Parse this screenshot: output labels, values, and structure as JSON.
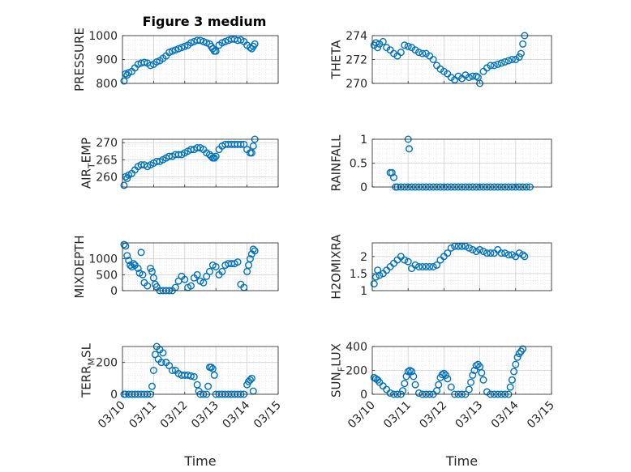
{
  "figure": {
    "title": "Figure 3 medium",
    "marker_color": "#0072BD"
  },
  "chart_data": [
    {
      "type": "scatter",
      "ylabel": "PRESSURE",
      "ylim": [
        800,
        1000
      ],
      "yticks": [
        800,
        900,
        1000
      ],
      "xlim": [
        0,
        5
      ],
      "xticks": [
        "03/10",
        "03/11",
        "03/12",
        "03/13",
        "03/14",
        "03/15"
      ],
      "grid": true,
      "x": [
        0.05,
        0.1,
        0.15,
        0.2,
        0.3,
        0.4,
        0.5,
        0.6,
        0.7,
        0.8,
        0.9,
        1.0,
        1.1,
        1.2,
        1.3,
        1.4,
        1.5,
        1.6,
        1.7,
        1.8,
        1.9,
        2.0,
        2.1,
        2.2,
        2.3,
        2.4,
        2.5,
        2.6,
        2.7,
        2.8,
        2.85,
        2.9,
        2.95,
        3.0,
        3.1,
        3.2,
        3.3,
        3.4,
        3.5,
        3.6,
        3.7,
        3.8,
        3.9,
        4.0,
        4.1,
        4.15,
        4.2,
        4.25
      ],
      "y": [
        810,
        840,
        835,
        845,
        850,
        865,
        880,
        885,
        888,
        885,
        875,
        880,
        890,
        895,
        905,
        915,
        930,
        935,
        940,
        945,
        950,
        955,
        960,
        970,
        975,
        980,
        980,
        975,
        970,
        965,
        955,
        945,
        935,
        935,
        960,
        970,
        975,
        980,
        985,
        985,
        980,
        982,
        975,
        960,
        950,
        945,
        955,
        965
      ]
    },
    {
      "type": "scatter",
      "ylabel": "THETA",
      "ylim": [
        270,
        274
      ],
      "yticks": [
        270,
        272,
        274
      ],
      "xlim": [
        0,
        5
      ],
      "xticks": [
        "03/10",
        "03/11",
        "03/12",
        "03/13",
        "03/14",
        "03/15"
      ],
      "grid": true,
      "x": [
        0.05,
        0.1,
        0.15,
        0.2,
        0.3,
        0.4,
        0.5,
        0.6,
        0.7,
        0.8,
        0.9,
        1.0,
        1.1,
        1.2,
        1.3,
        1.4,
        1.5,
        1.6,
        1.7,
        1.8,
        1.9,
        2.0,
        2.1,
        2.2,
        2.3,
        2.4,
        2.5,
        2.6,
        2.7,
        2.8,
        2.9,
        2.95,
        3.0,
        3.1,
        3.2,
        3.3,
        3.4,
        3.5,
        3.6,
        3.7,
        3.8,
        3.9,
        4.0,
        4.1,
        4.15,
        4.2,
        4.25
      ],
      "y": [
        273.2,
        273.4,
        273.0,
        273.3,
        273.5,
        273.0,
        272.8,
        272.5,
        272.3,
        272.6,
        273.2,
        273.1,
        273.0,
        272.8,
        272.6,
        272.5,
        272.5,
        272.3,
        272.0,
        271.5,
        271.2,
        271.0,
        270.8,
        270.5,
        270.3,
        270.6,
        270.4,
        270.7,
        270.5,
        270.6,
        270.6,
        270.5,
        270.0,
        271.0,
        271.3,
        271.5,
        271.5,
        271.6,
        271.7,
        271.8,
        271.9,
        272.0,
        272.0,
        272.2,
        272.5,
        273.3,
        274.0
      ]
    },
    {
      "type": "scatter",
      "ylabel": "AIR_TEMP",
      "ylim": [
        257,
        271
      ],
      "yticks": [
        260,
        265,
        270
      ],
      "xlim": [
        0,
        5
      ],
      "xticks": [
        "03/10",
        "03/11",
        "03/12",
        "03/13",
        "03/14",
        "03/15"
      ],
      "grid": true,
      "x": [
        0.05,
        0.1,
        0.15,
        0.2,
        0.3,
        0.4,
        0.5,
        0.6,
        0.7,
        0.8,
        0.9,
        1.0,
        1.1,
        1.2,
        1.3,
        1.4,
        1.5,
        1.6,
        1.7,
        1.8,
        1.9,
        2.0,
        2.1,
        2.2,
        2.3,
        2.4,
        2.5,
        2.6,
        2.7,
        2.8,
        2.85,
        2.9,
        2.95,
        3.0,
        3.1,
        3.2,
        3.3,
        3.4,
        3.5,
        3.6,
        3.7,
        3.8,
        3.9,
        4.0,
        4.1,
        4.15,
        4.2,
        4.25
      ],
      "y": [
        257.5,
        260,
        259.5,
        260.5,
        261,
        262,
        263,
        263.5,
        263.5,
        263,
        263.5,
        264,
        264.5,
        264.5,
        265,
        265.5,
        266,
        266,
        266.5,
        266.5,
        266.5,
        267,
        267.5,
        268,
        268,
        268.5,
        268.5,
        268,
        267,
        266.5,
        266,
        265.5,
        265.5,
        266,
        268,
        269,
        269.5,
        269.5,
        269.5,
        269.5,
        269.5,
        269.5,
        269.5,
        268,
        267,
        267,
        269,
        271
      ]
    },
    {
      "type": "scatter",
      "ylabel": "RAINFALL",
      "ylim": [
        0,
        1
      ],
      "yticks": [
        0,
        0.5,
        1
      ],
      "xlim": [
        0,
        5
      ],
      "xticks": [
        "03/10",
        "03/11",
        "03/12",
        "03/13",
        "03/14",
        "03/15"
      ],
      "grid": true,
      "x": [
        0.5,
        0.55,
        0.6,
        0.65,
        0.7,
        0.8,
        0.9,
        1.0,
        1.1,
        1.2,
        1.3,
        1.4,
        1.5,
        1.6,
        1.7,
        1.8,
        1.9,
        2.0,
        2.1,
        2.2,
        2.3,
        2.4,
        2.5,
        2.6,
        2.7,
        2.8,
        2.9,
        3.0,
        3.1,
        3.2,
        3.3,
        3.4,
        3.5,
        3.6,
        3.7,
        3.8,
        3.9,
        4.0,
        4.1,
        4.2,
        4.3,
        4.4,
        1.0,
        1.03
      ],
      "y": [
        0.3,
        0.3,
        0.2,
        0,
        0,
        0,
        0,
        0,
        0,
        0,
        0,
        0,
        0,
        0,
        0,
        0,
        0,
        0,
        0,
        0,
        0,
        0,
        0,
        0,
        0,
        0,
        0,
        0,
        0,
        0,
        0,
        0,
        0,
        0,
        0,
        0,
        0,
        0,
        0,
        0,
        0,
        0,
        1.0,
        0.8
      ]
    },
    {
      "type": "scatter",
      "ylabel": "MIXDEPTH",
      "ylim": [
        0,
        1500
      ],
      "yticks": [
        0,
        500,
        1000
      ],
      "xlim": [
        0,
        5
      ],
      "xticks": [
        "03/10",
        "03/11",
        "03/12",
        "03/13",
        "03/14",
        "03/15"
      ],
      "grid": true,
      "x": [
        0.05,
        0.1,
        0.15,
        0.2,
        0.25,
        0.3,
        0.35,
        0.4,
        0.5,
        0.55,
        0.6,
        0.65,
        0.7,
        0.8,
        0.9,
        0.95,
        1.0,
        1.05,
        1.1,
        1.2,
        1.3,
        1.4,
        1.5,
        1.6,
        1.7,
        1.8,
        1.9,
        2.0,
        2.1,
        2.2,
        2.3,
        2.4,
        2.5,
        2.6,
        2.7,
        2.8,
        2.9,
        3.0,
        3.1,
        3.2,
        3.3,
        3.4,
        3.5,
        3.6,
        3.7,
        3.8,
        3.9,
        4.0,
        4.05,
        4.1,
        4.15,
        4.2,
        4.25
      ],
      "y": [
        1450,
        1400,
        1100,
        950,
        800,
        750,
        850,
        800,
        700,
        550,
        1200,
        500,
        250,
        150,
        700,
        600,
        400,
        200,
        120,
        0,
        0,
        0,
        0,
        0,
        100,
        300,
        450,
        350,
        100,
        150,
        400,
        500,
        300,
        250,
        450,
        600,
        800,
        750,
        500,
        600,
        800,
        850,
        850,
        850,
        900,
        200,
        100,
        600,
        800,
        1000,
        1150,
        1300,
        1250
      ]
    },
    {
      "type": "scatter",
      "ylabel": "H2OMIXRA",
      "ylim": [
        1,
        2.4
      ],
      "yticks": [
        1,
        1.5,
        2
      ],
      "xlim": [
        0,
        5
      ],
      "xticks": [
        "03/10",
        "03/11",
        "03/12",
        "03/13",
        "03/14",
        "03/15"
      ],
      "grid": true,
      "x": [
        0.05,
        0.1,
        0.15,
        0.2,
        0.3,
        0.4,
        0.5,
        0.6,
        0.7,
        0.8,
        0.9,
        1.0,
        1.1,
        1.2,
        1.3,
        1.4,
        1.5,
        1.6,
        1.7,
        1.8,
        1.9,
        2.0,
        2.1,
        2.2,
        2.3,
        2.4,
        2.5,
        2.6,
        2.7,
        2.8,
        2.9,
        3.0,
        3.1,
        3.2,
        3.3,
        3.4,
        3.5,
        3.6,
        3.7,
        3.8,
        3.9,
        4.0,
        4.1,
        4.2,
        4.25
      ],
      "y": [
        1.2,
        1.4,
        1.6,
        1.45,
        1.5,
        1.6,
        1.7,
        1.8,
        1.9,
        2.0,
        1.9,
        1.85,
        1.65,
        1.75,
        1.7,
        1.7,
        1.7,
        1.7,
        1.7,
        1.75,
        1.9,
        2.0,
        2.1,
        2.25,
        2.3,
        2.3,
        2.3,
        2.3,
        2.25,
        2.2,
        2.15,
        2.2,
        2.15,
        2.1,
        2.1,
        2.1,
        2.2,
        2.1,
        2.1,
        2.05,
        2.05,
        2.0,
        2.1,
        2.05,
        2.0
      ]
    },
    {
      "type": "scatter",
      "ylabel": "TERR_MSL",
      "ylim": [
        0,
        300
      ],
      "yticks": [
        0,
        200
      ],
      "xlim": [
        0,
        5
      ],
      "xticks": [
        "03/10",
        "03/11",
        "03/12",
        "03/13",
        "03/14",
        "03/15"
      ],
      "grid": true,
      "x": [
        0.05,
        0.1,
        0.2,
        0.3,
        0.4,
        0.5,
        0.6,
        0.7,
        0.8,
        0.9,
        0.95,
        1.0,
        1.05,
        1.1,
        1.15,
        1.2,
        1.25,
        1.3,
        1.4,
        1.5,
        1.6,
        1.7,
        1.8,
        1.9,
        2.0,
        2.1,
        2.2,
        2.3,
        2.4,
        2.45,
        2.5,
        2.6,
        2.7,
        2.75,
        2.8,
        2.85,
        2.9,
        2.95,
        3.0,
        3.1,
        3.2,
        3.3,
        3.4,
        3.5,
        3.6,
        3.7,
        3.8,
        3.9,
        4.0,
        4.05,
        4.1,
        4.15,
        4.2
      ],
      "y": [
        0,
        0,
        0,
        0,
        0,
        0,
        0,
        0,
        0,
        0,
        50,
        150,
        250,
        300,
        220,
        280,
        200,
        260,
        200,
        180,
        150,
        150,
        130,
        120,
        120,
        120,
        115,
        110,
        60,
        20,
        0,
        0,
        0,
        50,
        170,
        170,
        160,
        120,
        0,
        0,
        0,
        0,
        0,
        0,
        0,
        0,
        0,
        0,
        60,
        80,
        90,
        100,
        20
      ]
    },
    {
      "type": "scatter",
      "ylabel": "SUN_FLUX",
      "ylim": [
        0,
        400
      ],
      "yticks": [
        0,
        200,
        400
      ],
      "xlim": [
        0,
        5
      ],
      "xticks": [
        "03/10",
        "03/11",
        "03/12",
        "03/13",
        "03/14",
        "03/15"
      ],
      "grid": true,
      "x": [
        0.05,
        0.1,
        0.15,
        0.2,
        0.3,
        0.4,
        0.5,
        0.6,
        0.7,
        0.8,
        0.85,
        0.9,
        0.95,
        1.0,
        1.05,
        1.1,
        1.15,
        1.2,
        1.3,
        1.4,
        1.5,
        1.6,
        1.7,
        1.8,
        1.85,
        1.9,
        1.95,
        2.0,
        2.05,
        2.1,
        2.2,
        2.3,
        2.4,
        2.5,
        2.6,
        2.7,
        2.75,
        2.8,
        2.85,
        2.9,
        2.95,
        3.0,
        3.05,
        3.1,
        3.2,
        3.3,
        3.4,
        3.5,
        3.6,
        3.7,
        3.8,
        3.85,
        3.9,
        3.95,
        4.0,
        4.05,
        4.1,
        4.15,
        4.2
      ],
      "y": [
        140,
        130,
        120,
        100,
        70,
        40,
        10,
        0,
        0,
        0,
        30,
        90,
        150,
        190,
        200,
        190,
        150,
        80,
        10,
        0,
        0,
        0,
        0,
        30,
        80,
        140,
        165,
        175,
        160,
        130,
        60,
        0,
        0,
        0,
        0,
        40,
        100,
        160,
        200,
        240,
        250,
        230,
        180,
        120,
        20,
        0,
        0,
        0,
        0,
        0,
        0,
        60,
        120,
        190,
        250,
        310,
        340,
        360,
        380
      ]
    }
  ]
}
